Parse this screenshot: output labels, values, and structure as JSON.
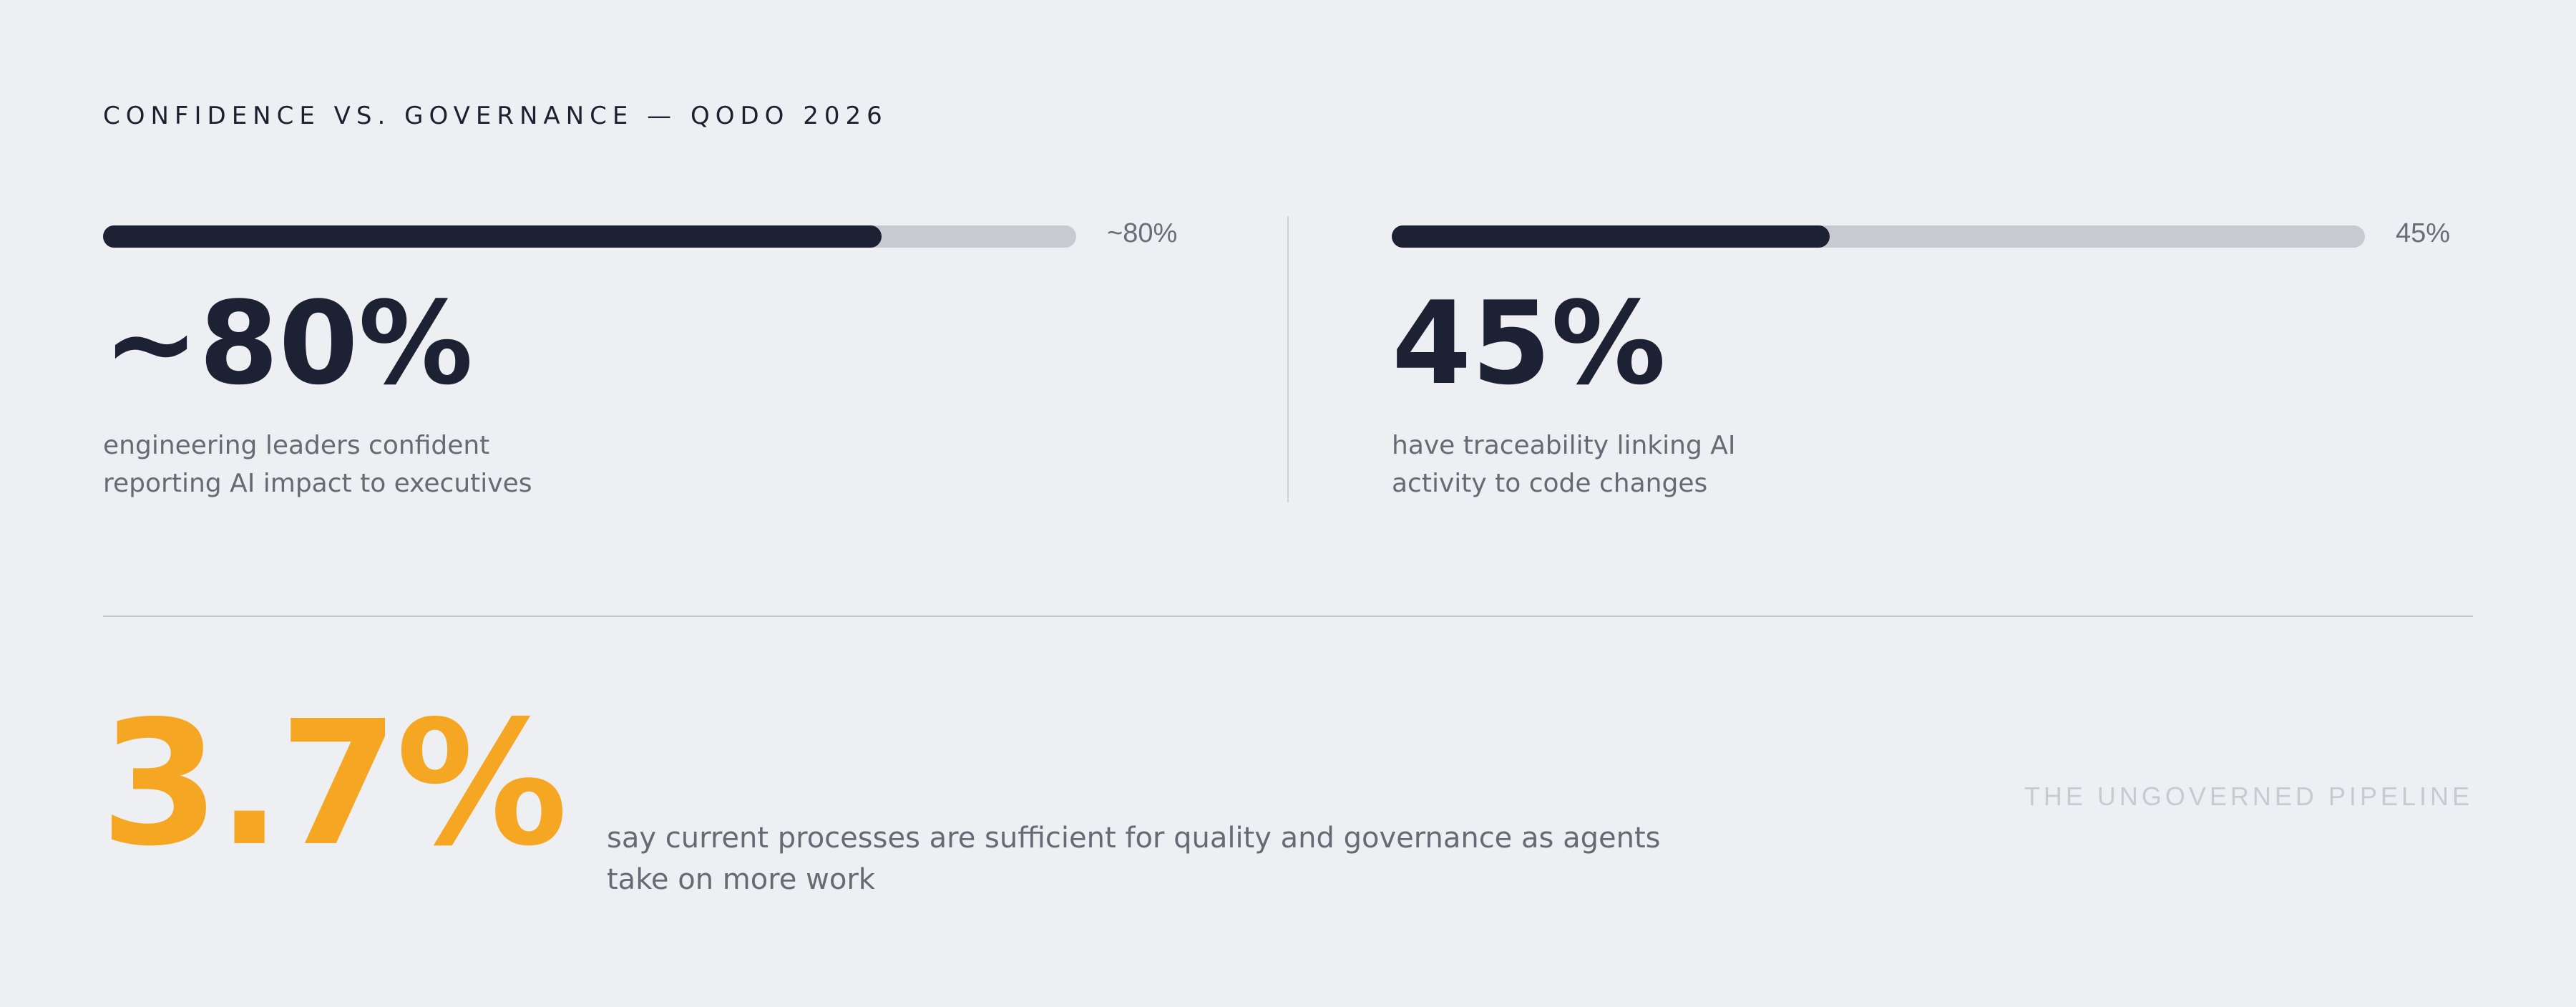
{
  "eyebrow": "CONFIDENCE VS. GOVERNANCE — QODO 2026",
  "stats": [
    {
      "value": "~80%",
      "bar_label": "~80%",
      "progress": 0.8,
      "description_lines": [
        "engineering leaders confident",
        "reporting AI impact to executives"
      ]
    },
    {
      "value": "45%",
      "bar_label": "45%",
      "progress": 0.45,
      "description_lines": [
        "have traceability linking AI",
        "activity to code changes"
      ]
    }
  ],
  "hero": {
    "value": "3.7%",
    "description": "say current processes are sufficient for quality and governance as agents take on more work",
    "color": "#f5a623"
  },
  "tagline": "THE UNGOVERNED PIPELINE",
  "colors": {
    "background": "#eeeff2",
    "bar_fill": "#1c2133",
    "bar_track": "#c9cad1",
    "accent": "#f5a623"
  }
}
